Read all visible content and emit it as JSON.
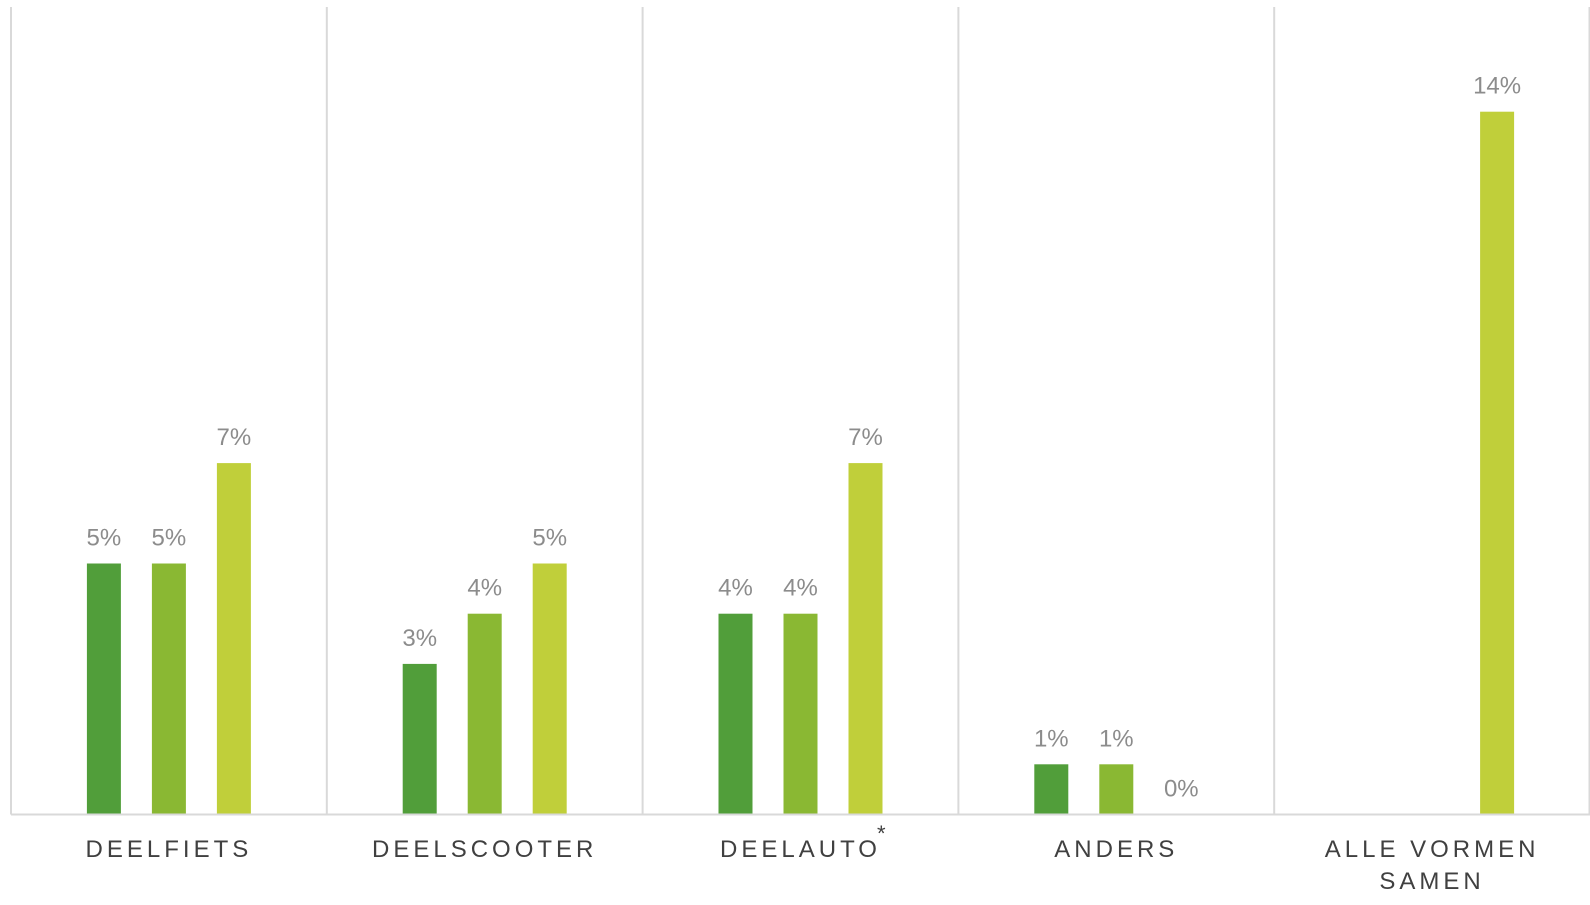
{
  "chart_data": {
    "type": "bar",
    "categories": [
      {
        "lines": [
          "DEELFIETS"
        ],
        "marker": ""
      },
      {
        "lines": [
          "DEELSCOOTER"
        ],
        "marker": ""
      },
      {
        "lines": [
          "DEELAUTO"
        ],
        "marker": "*"
      },
      {
        "lines": [
          "ANDERS"
        ],
        "marker": ""
      },
      {
        "lines": [
          "ALLE VORMEN",
          "SAMEN"
        ],
        "marker": ""
      }
    ],
    "series": [
      {
        "color": "#519e3a",
        "values": [
          5,
          3,
          4,
          1,
          null
        ],
        "labels": [
          "5%",
          "3%",
          "4%",
          "1%",
          ""
        ]
      },
      {
        "color": "#8ab833",
        "values": [
          5,
          4,
          4,
          1,
          null
        ],
        "labels": [
          "5%",
          "4%",
          "4%",
          "1%",
          ""
        ]
      },
      {
        "color": "#c0cf3a",
        "values": [
          7,
          5,
          7,
          0,
          14
        ],
        "labels": [
          "7%",
          "5%",
          "7%",
          "0%",
          "14%"
        ]
      }
    ],
    "ylim": [
      0,
      16
    ],
    "unit": "%",
    "grid": "vertical category separators",
    "legend": "none"
  }
}
